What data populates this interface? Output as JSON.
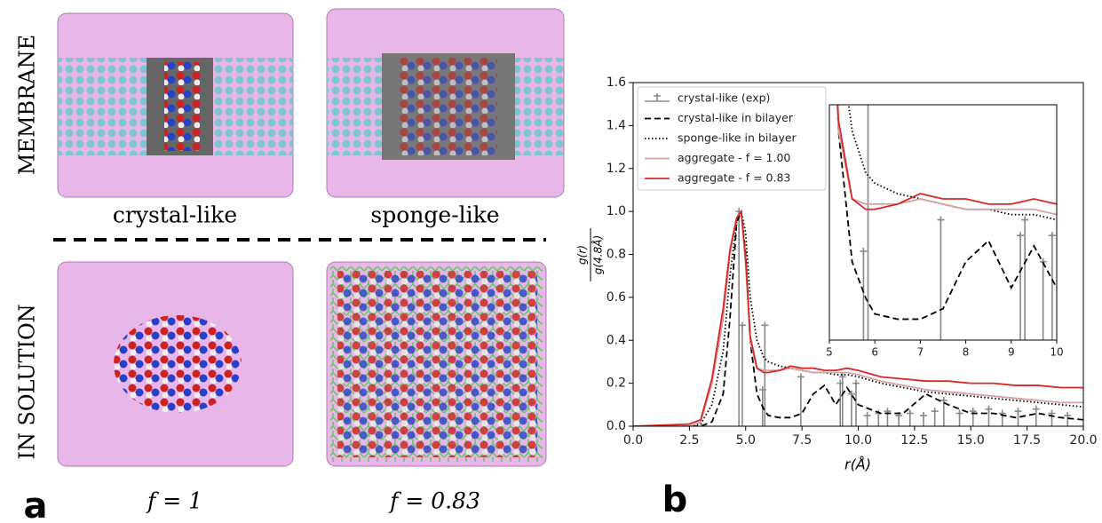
{
  "figure": {
    "row_labels": [
      "MEMBRANE",
      "IN SOLUTION"
    ],
    "column_labels": [
      "crystal-like",
      "sponge-like"
    ],
    "bottom_labels": [
      "f = 1",
      "f = 0.83"
    ],
    "panel_letters": [
      "a",
      "b"
    ]
  },
  "chart_data": {
    "type": "line",
    "x_label": "r(Å)",
    "y_label_numerator": "g(r)",
    "y_label_denominator": "g(4.8Å)",
    "xlim": [
      0,
      20
    ],
    "ylim": [
      0,
      1.6
    ],
    "xticks": [
      {
        "value": 0,
        "label": "0.0"
      },
      {
        "value": 2.5,
        "label": "2.5"
      },
      {
        "value": 5,
        "label": "5.0"
      },
      {
        "value": 7.5,
        "label": "7.5"
      },
      {
        "value": 10,
        "label": "10.0"
      },
      {
        "value": 12.5,
        "label": "12.5"
      },
      {
        "value": 15,
        "label": "15.0"
      },
      {
        "value": 17.5,
        "label": "17.5"
      },
      {
        "value": 20,
        "label": "20.0"
      }
    ],
    "yticks": [
      {
        "value": 0,
        "label": "0.0"
      },
      {
        "value": 0.2,
        "label": "0.2"
      },
      {
        "value": 0.4,
        "label": "0.4"
      },
      {
        "value": 0.6,
        "label": "0.6"
      },
      {
        "value": 0.8,
        "label": "0.8"
      },
      {
        "value": 1.0,
        "label": "1.0"
      },
      {
        "value": 1.2,
        "label": "1.2"
      },
      {
        "value": 1.4,
        "label": "1.4"
      },
      {
        "value": 1.6,
        "label": "1.6"
      }
    ],
    "legend": "upper left",
    "x": [
      0,
      2.5,
      3,
      3.5,
      4,
      4.3,
      4.6,
      4.8,
      5,
      5.2,
      5.5,
      5.8,
      6,
      6.5,
      7,
      7.5,
      8,
      8.5,
      9,
      9.5,
      10,
      11,
      12,
      13,
      14,
      15,
      16,
      17,
      18,
      19,
      20
    ],
    "series": [
      {
        "name": "crystal-like (exp)",
        "color": "#888888",
        "style": "stem",
        "x": [
          4.7,
          4.85,
          5.75,
          5.85,
          7.45,
          9.2,
          9.3,
          9.7,
          9.9,
          10.4,
          10.9,
          11.3,
          11.8,
          12.3,
          12.9,
          13.4,
          13.8,
          14.5,
          15.1,
          15.8,
          16.4,
          17.1,
          17.9,
          18.6,
          19.3
        ],
        "values": [
          1.0,
          0.47,
          0.17,
          0.47,
          0.23,
          0.2,
          0.23,
          0.15,
          0.2,
          0.05,
          0.06,
          0.07,
          0.05,
          0.06,
          0.05,
          0.07,
          0.12,
          0.06,
          0.07,
          0.08,
          0.06,
          0.07,
          0.08,
          0.06,
          0.05
        ]
      },
      {
        "name": "crystal-like in bilayer",
        "color": "#000000",
        "style": "dashed",
        "values": [
          0,
          0,
          0,
          0.02,
          0.15,
          0.5,
          0.95,
          1.0,
          0.8,
          0.4,
          0.15,
          0.08,
          0.05,
          0.04,
          0.04,
          0.06,
          0.15,
          0.19,
          0.1,
          0.18,
          0.1,
          0.06,
          0.06,
          0.15,
          0.1,
          0.06,
          0.06,
          0.04,
          0.06,
          0.04,
          0.03
        ]
      },
      {
        "name": "sponge-like in bilayer",
        "color": "#000000",
        "style": "dotted",
        "values": [
          0,
          0,
          0.01,
          0.1,
          0.35,
          0.7,
          0.95,
          1.0,
          0.9,
          0.6,
          0.4,
          0.32,
          0.3,
          0.28,
          0.27,
          0.26,
          0.25,
          0.25,
          0.24,
          0.24,
          0.23,
          0.2,
          0.18,
          0.16,
          0.15,
          0.14,
          0.13,
          0.12,
          0.11,
          0.1,
          0.09
        ]
      },
      {
        "name": "aggregate - f = 1.00",
        "color": "#d4a0a0",
        "style": "solid",
        "values": [
          0,
          0,
          0.02,
          0.2,
          0.5,
          0.8,
          0.97,
          1.0,
          0.75,
          0.4,
          0.27,
          0.26,
          0.26,
          0.26,
          0.27,
          0.26,
          0.25,
          0.25,
          0.25,
          0.25,
          0.24,
          0.21,
          0.19,
          0.17,
          0.16,
          0.15,
          0.14,
          0.13,
          0.12,
          0.11,
          0.11
        ]
      },
      {
        "name": "aggregate - f = 0.83",
        "color": "#d62728",
        "style": "solid",
        "values": [
          0,
          0.01,
          0.03,
          0.22,
          0.55,
          0.82,
          0.97,
          1.0,
          0.78,
          0.42,
          0.27,
          0.25,
          0.25,
          0.26,
          0.28,
          0.27,
          0.27,
          0.26,
          0.26,
          0.27,
          0.26,
          0.23,
          0.22,
          0.21,
          0.21,
          0.2,
          0.2,
          0.19,
          0.19,
          0.18,
          0.18
        ]
      }
    ],
    "inset": {
      "xlim": [
        5,
        10
      ],
      "ylim": [
        0,
        0.45
      ],
      "xticks": [
        5,
        6,
        7,
        8,
        9,
        10
      ]
    }
  }
}
